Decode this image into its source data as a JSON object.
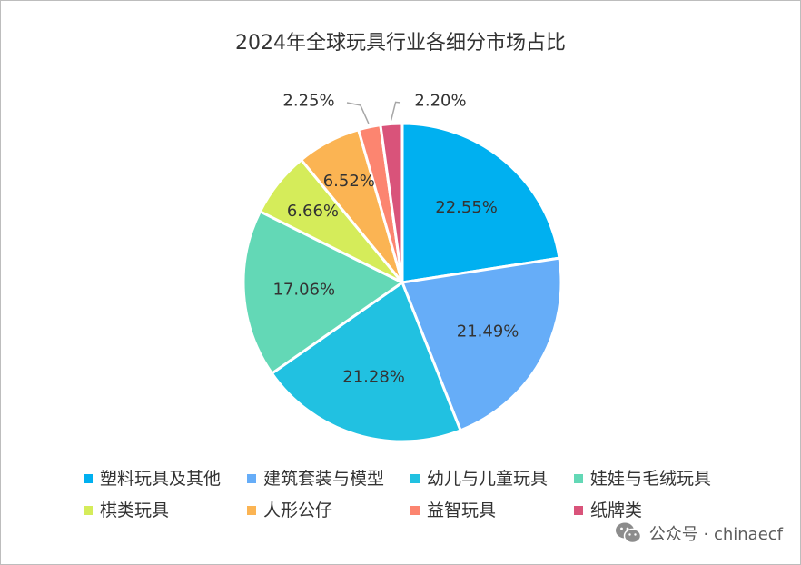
{
  "chart_data": {
    "type": "pie",
    "title": "2024年全球玩具行业各细分市场占比",
    "start_angle_deg": 0,
    "direction": "clockwise",
    "legend_position": "bottom",
    "slices": [
      {
        "label": "塑料玩具及其他",
        "value": 22.55,
        "display": "22.55%",
        "color": "#00b0f0"
      },
      {
        "label": "建筑套装与模型",
        "value": 21.49,
        "display": "21.49%",
        "color": "#66adf8"
      },
      {
        "label": "幼儿与儿童玩具",
        "value": 21.28,
        "display": "21.28%",
        "color": "#21c1e1"
      },
      {
        "label": "娃娃与毛绒玩具",
        "value": 17.06,
        "display": "17.06%",
        "color": "#63d8b6"
      },
      {
        "label": "棋类玩具",
        "value": 6.66,
        "display": "6.66%",
        "color": "#d5ec5a"
      },
      {
        "label": "人形公仔",
        "value": 6.52,
        "display": "6.52%",
        "color": "#fbb453"
      },
      {
        "label": "益智玩具",
        "value": 2.25,
        "display": "2.25%",
        "color": "#fc8570"
      },
      {
        "label": "纸牌类",
        "value": 2.2,
        "display": "2.20%",
        "color": "#d9537a"
      }
    ]
  },
  "watermark": {
    "text": "公众号 · chinaecf",
    "icon": "wechat-icon"
  }
}
